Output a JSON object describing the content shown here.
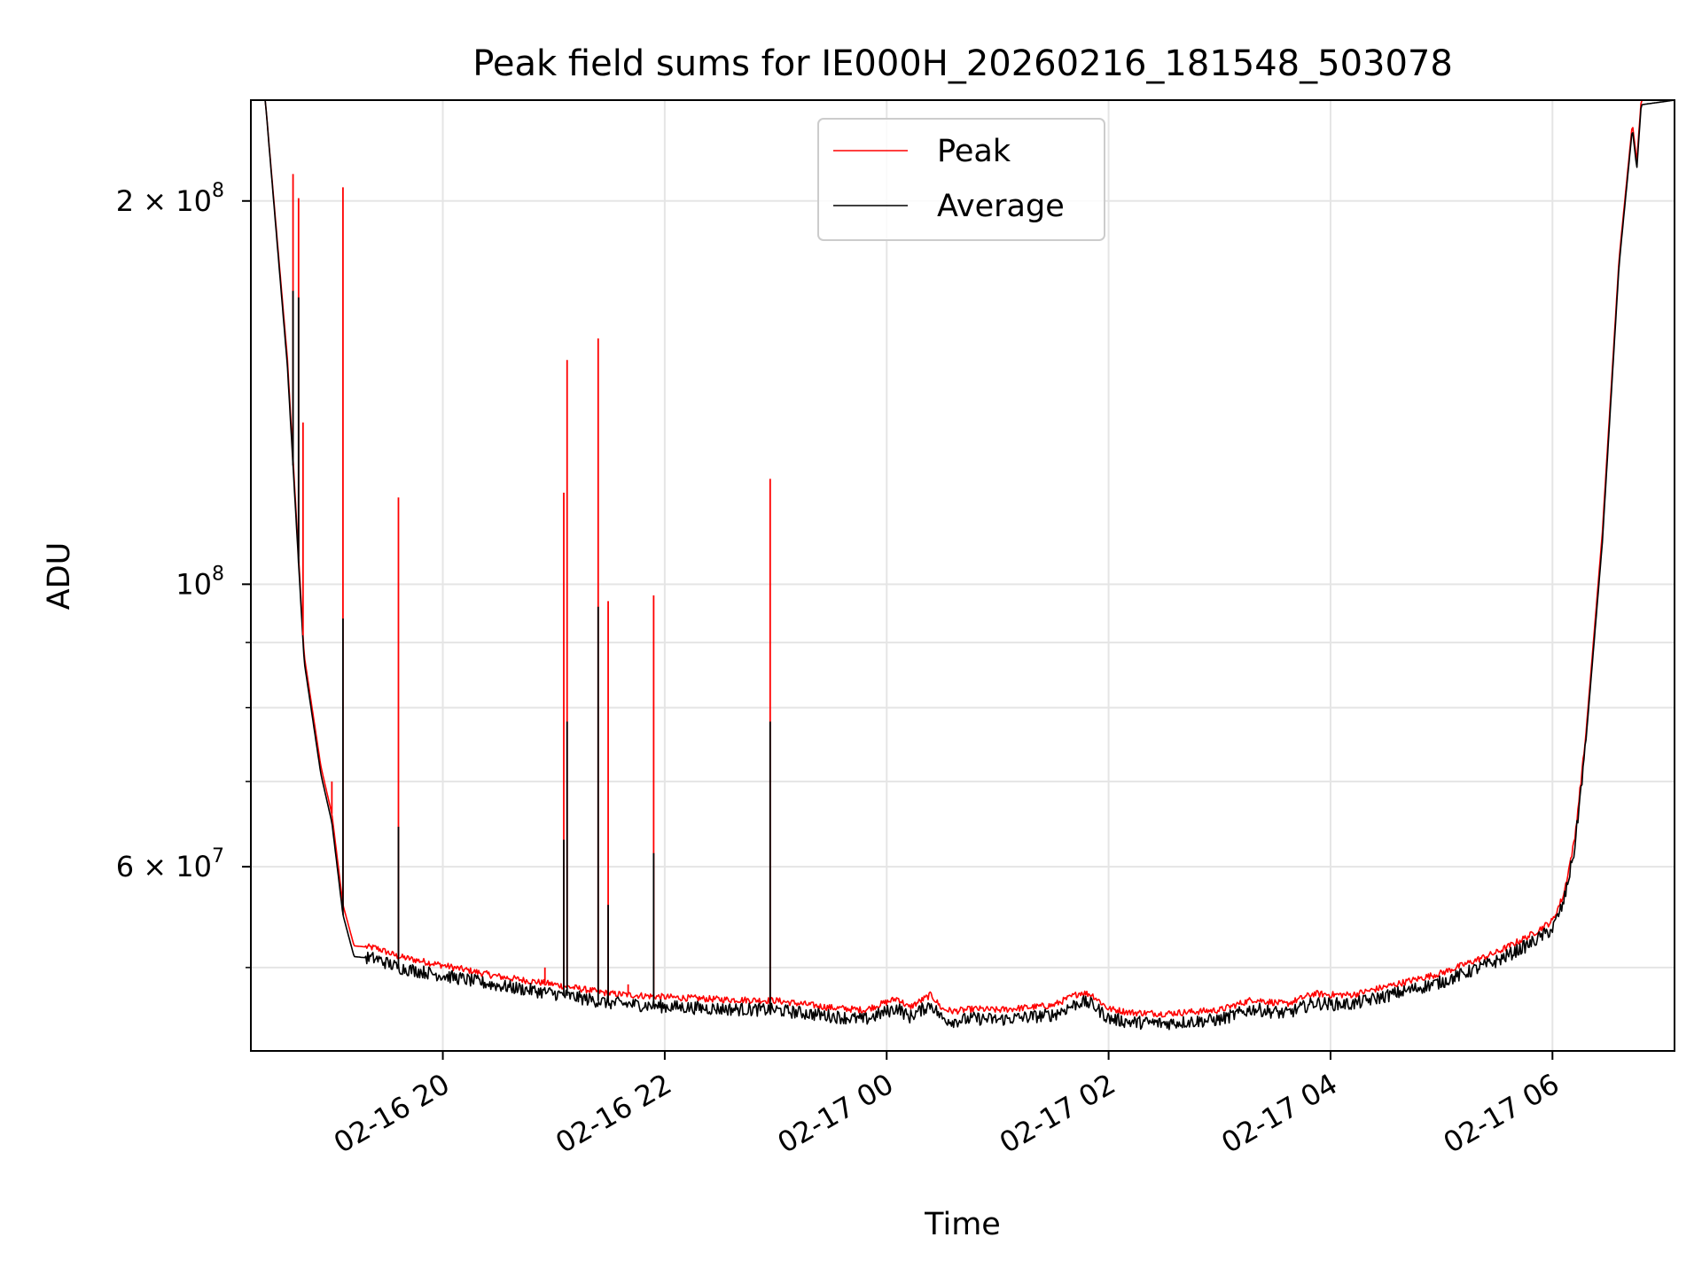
{
  "chart_data": {
    "type": "line",
    "title": "Peak field sums for IE000H_20260216_181548_503078",
    "xlabel": "Time",
    "ylabel": "ADU",
    "yscale": "log",
    "ylim": [
      43000000,
      240000000
    ],
    "xlim_hours_from_2026_02_16_00": [
      18.27,
      31.1
    ],
    "grid": true,
    "legend_position": "top-center",
    "x_ticks": [
      {
        "label": "02-16 20",
        "hours": 20
      },
      {
        "label": "02-16 22",
        "hours": 22
      },
      {
        "label": "02-17 00",
        "hours": 24
      },
      {
        "label": "02-17 02",
        "hours": 26
      },
      {
        "label": "02-17 04",
        "hours": 28
      },
      {
        "label": "02-17 06",
        "hours": 30
      }
    ],
    "y_ticks_labeled": [
      {
        "label": "2 × 10",
        "exp": "8",
        "value": 200000000
      },
      {
        "label": "10",
        "exp": "8",
        "value": 100000000
      },
      {
        "label": "6 × 10",
        "exp": "7",
        "value": 60000000
      }
    ],
    "y_ticks_minor": [
      50000000,
      70000000,
      80000000,
      90000000
    ],
    "series": [
      {
        "name": "Peak",
        "color": "#ff0000",
        "baseline": {
          "hours": [
            18.27,
            18.4,
            18.6,
            18.75,
            18.9,
            19.0,
            19.1,
            19.2,
            19.4,
            19.6,
            20.0,
            20.5,
            21.0,
            21.5,
            22.0,
            22.5,
            23.0,
            23.5,
            23.8,
            24.1,
            24.2,
            24.4,
            24.5,
            24.6,
            24.8,
            25.0,
            25.5,
            25.75,
            25.85,
            26.0,
            26.2,
            26.5,
            27.0,
            27.3,
            27.6,
            27.85,
            28.0,
            28.2,
            28.5,
            29.0,
            29.5,
            29.8,
            30.0,
            30.1,
            30.2,
            30.3,
            30.45,
            30.6,
            30.72,
            30.76,
            30.8,
            31.1
          ],
          "values": [
            240000000,
            240000000,
            150000000,
            88000000,
            72000000,
            66000000,
            56000000,
            52000000,
            51800000,
            51000000,
            50200000,
            49200000,
            48500000,
            47700000,
            47400000,
            47200000,
            47100000,
            46500000,
            46300000,
            47300000,
            46500000,
            47600000,
            46400000,
            46200000,
            46400000,
            46300000,
            46700000,
            47800000,
            47600000,
            46400000,
            46100000,
            46000000,
            46300000,
            47200000,
            46800000,
            47700000,
            47600000,
            47600000,
            48300000,
            49500000,
            51400000,
            53000000,
            54400000,
            57000000,
            63000000,
            76000000,
            110000000,
            180000000,
            230000000,
            215000000,
            240000000,
            240000000
          ]
        },
        "spikes": [
          {
            "hours": 18.65,
            "value": 210000000
          },
          {
            "hours": 18.7,
            "value": 201000000
          },
          {
            "hours": 18.74,
            "value": 134000000
          },
          {
            "hours": 19.0,
            "value": 70000000
          },
          {
            "hours": 19.1,
            "value": 205000000
          },
          {
            "hours": 19.6,
            "value": 117000000
          },
          {
            "hours": 20.92,
            "value": 50000000
          },
          {
            "hours": 21.09,
            "value": 118000000
          },
          {
            "hours": 21.12,
            "value": 150000000
          },
          {
            "hours": 21.4,
            "value": 156000000
          },
          {
            "hours": 21.49,
            "value": 97000000
          },
          {
            "hours": 21.67,
            "value": 48500000
          },
          {
            "hours": 21.9,
            "value": 98000000
          },
          {
            "hours": 22.95,
            "value": 121000000
          }
        ]
      },
      {
        "name": "Average",
        "color": "#000000",
        "baseline": {
          "hours": [
            18.27,
            18.4,
            18.6,
            18.75,
            18.9,
            19.0,
            19.1,
            19.2,
            19.4,
            19.6,
            20.0,
            20.5,
            21.0,
            21.5,
            22.0,
            22.5,
            23.0,
            23.5,
            23.8,
            24.1,
            24.2,
            24.4,
            24.5,
            24.6,
            24.8,
            25.0,
            25.5,
            25.75,
            25.85,
            26.0,
            26.2,
            26.5,
            27.0,
            27.3,
            27.6,
            27.85,
            28.0,
            28.2,
            28.5,
            29.0,
            29.5,
            29.8,
            30.0,
            30.1,
            30.2,
            30.3,
            30.45,
            30.6,
            30.72,
            30.76,
            30.8,
            31.1
          ],
          "values": [
            240000000,
            240000000,
            148000000,
            87000000,
            71000000,
            65000000,
            55000000,
            51000000,
            50800000,
            50000000,
            49300000,
            48400000,
            47700000,
            46900000,
            46600000,
            46400000,
            46300000,
            45800000,
            45500000,
            46500000,
            45700000,
            46800000,
            45600000,
            45400000,
            45600000,
            45500000,
            45900000,
            47000000,
            46800000,
            45600000,
            45300000,
            45200000,
            45500000,
            46400000,
            46000000,
            46900000,
            46800000,
            46800000,
            47500000,
            48700000,
            50600000,
            52200000,
            53600000,
            56200000,
            62000000,
            75000000,
            108000000,
            178000000,
            228000000,
            212000000,
            238000000,
            240000000
          ]
        },
        "spikes": [
          {
            "hours": 18.65,
            "value": 170000000
          },
          {
            "hours": 18.7,
            "value": 168000000
          },
          {
            "hours": 19.1,
            "value": 94000000
          },
          {
            "hours": 19.6,
            "value": 64500000
          },
          {
            "hours": 21.09,
            "value": 63000000
          },
          {
            "hours": 21.12,
            "value": 78000000
          },
          {
            "hours": 21.4,
            "value": 96000000
          },
          {
            "hours": 21.49,
            "value": 56000000
          },
          {
            "hours": 21.9,
            "value": 61500000
          },
          {
            "hours": 22.95,
            "value": 78000000
          }
        ]
      }
    ]
  }
}
